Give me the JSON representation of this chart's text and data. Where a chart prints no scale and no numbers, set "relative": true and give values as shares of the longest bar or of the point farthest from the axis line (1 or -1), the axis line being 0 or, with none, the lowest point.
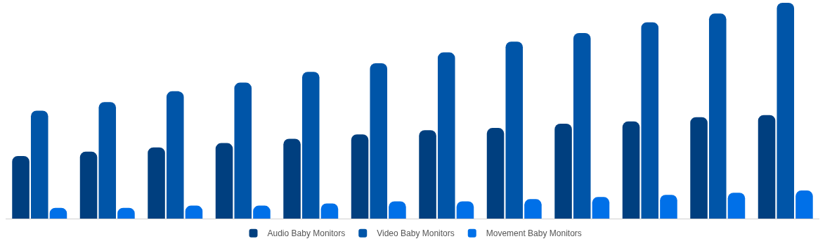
{
  "chart_data": {
    "type": "bar",
    "relative": true,
    "legend": "bottom",
    "categories": [
      null,
      null,
      null,
      null,
      null,
      null,
      null,
      null,
      null,
      null,
      null,
      null
    ],
    "series": [
      {
        "name": "Audio Baby Monitors",
        "color": "#003f7f",
        "values": [
          0.29,
          0.31,
          0.33,
          0.35,
          0.37,
          0.39,
          0.41,
          0.42,
          0.44,
          0.45,
          0.47,
          0.48
        ]
      },
      {
        "name": "Video Baby Monitors",
        "color": "#0055a8",
        "values": [
          0.5,
          0.54,
          0.59,
          0.63,
          0.68,
          0.72,
          0.77,
          0.82,
          0.86,
          0.91,
          0.95,
          1
        ]
      },
      {
        "name": "Movement Baby Monitors",
        "color": "#0070e8",
        "values": [
          0.05,
          0.05,
          0.06,
          0.06,
          0.07,
          0.08,
          0.08,
          0.09,
          0.1,
          0.11,
          0.12,
          0.13
        ]
      }
    ]
  }
}
